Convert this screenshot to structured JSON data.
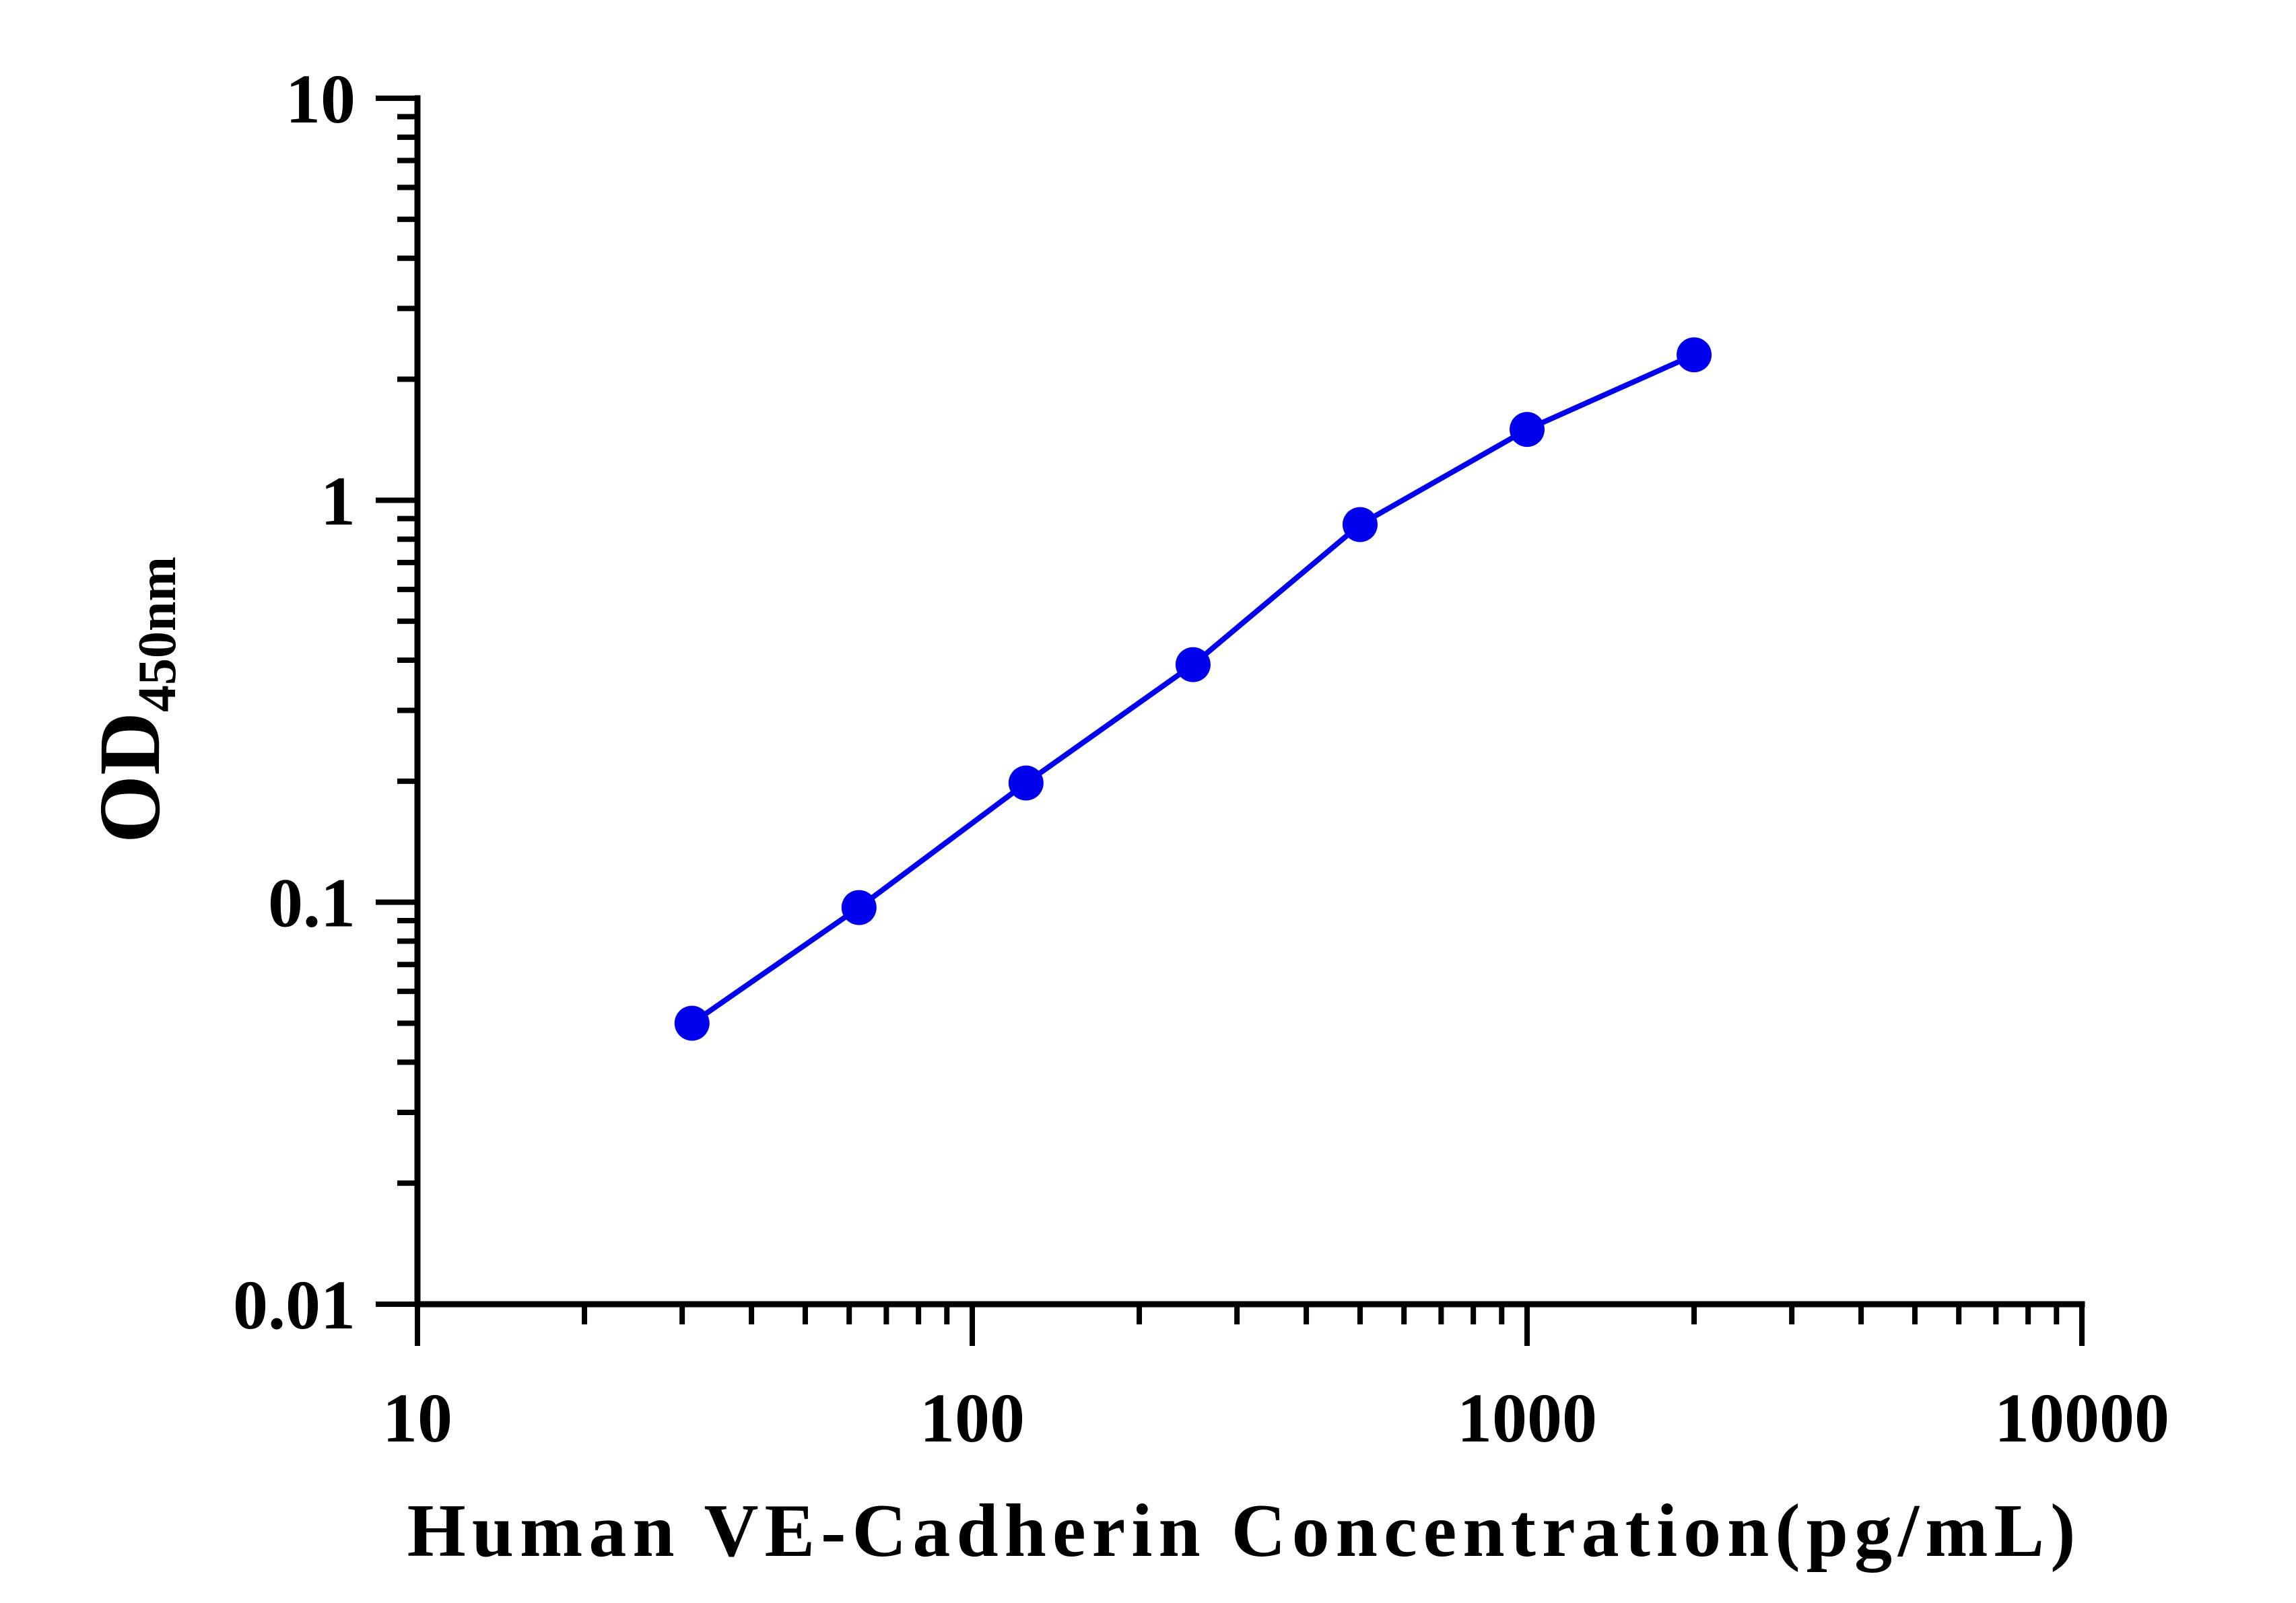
{
  "chart_data": {
    "type": "line",
    "xlabel": "Human VE-Cadherin Concentration(pg/mL)",
    "ylabel_main": "OD",
    "ylabel_sub": "450nm",
    "x_scale": "log",
    "y_scale": "log",
    "xlim": [
      10,
      10000
    ],
    "ylim": [
      0.01,
      10
    ],
    "x_tick_labels": [
      "10",
      "100",
      "1000",
      "10000"
    ],
    "y_tick_labels": [
      "0.01",
      "0.1",
      "1",
      "10"
    ],
    "grid": false,
    "legend": "none",
    "series": [
      {
        "x": [
          31.25,
          62.5,
          125,
          250,
          500,
          1000,
          2000
        ],
        "y": [
          0.05,
          0.097,
          0.198,
          0.39,
          0.87,
          1.5,
          2.3
        ],
        "color": "#0000ee",
        "marker": "circle"
      }
    ]
  }
}
